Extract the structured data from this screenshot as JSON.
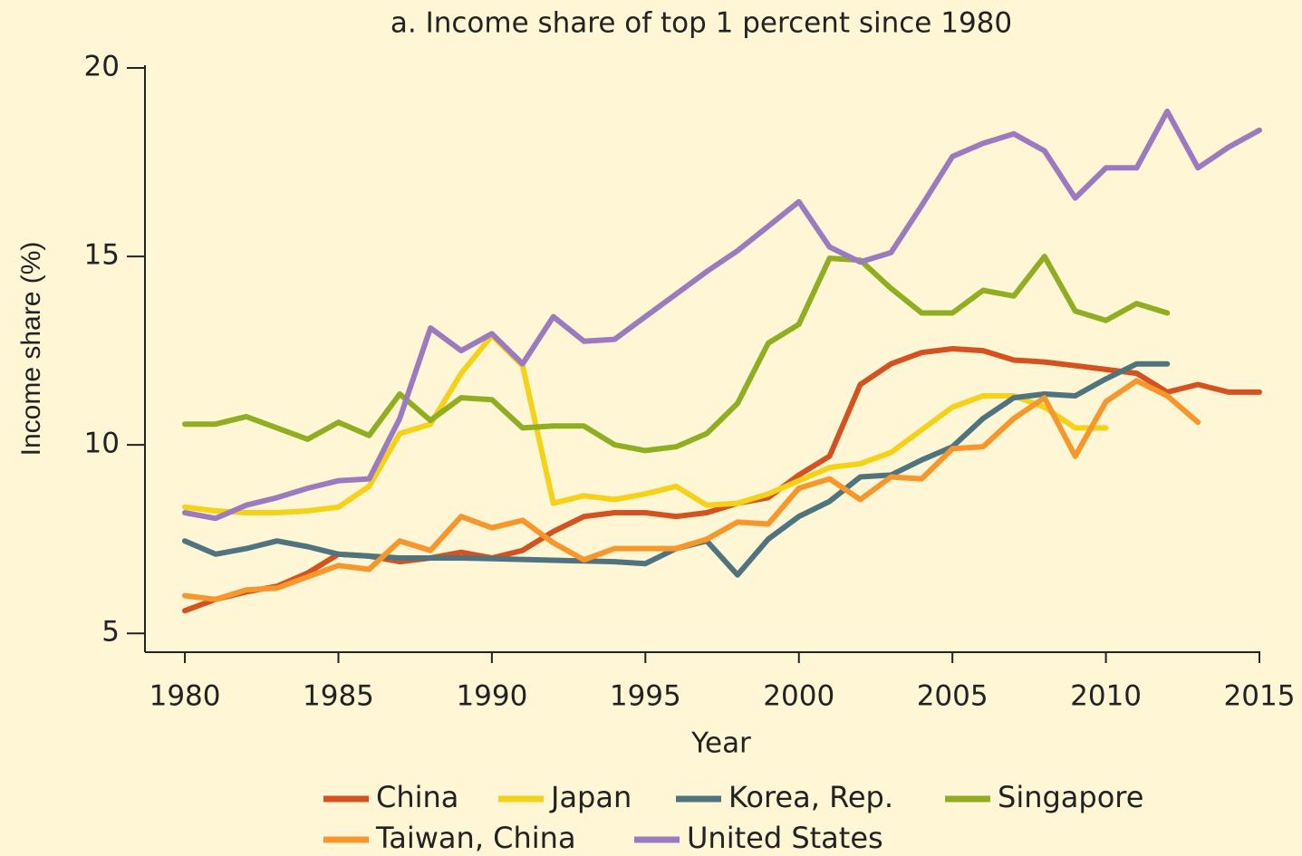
{
  "chart_data": {
    "type": "line",
    "title": "a. Income share of top 1 percent since 1980",
    "xlabel": "Year",
    "ylabel": "Income share (%)",
    "x": [
      1980,
      1981,
      1982,
      1983,
      1984,
      1985,
      1986,
      1987,
      1988,
      1989,
      1990,
      1991,
      1992,
      1993,
      1994,
      1995,
      1996,
      1997,
      1998,
      1999,
      2000,
      2001,
      2002,
      2003,
      2004,
      2005,
      2006,
      2007,
      2008,
      2009,
      2010,
      2011,
      2012,
      2013,
      2014,
      2015
    ],
    "xlim": [
      1978.7,
      2015
    ],
    "xticks": [
      1980,
      1985,
      1990,
      1995,
      2000,
      2005,
      2010,
      2015
    ],
    "ylim": [
      4.5,
      20
    ],
    "yticks": [
      5,
      10,
      15,
      20
    ],
    "series": [
      {
        "name": "China",
        "color": "#d4521f",
        "values": [
          5.6,
          5.9,
          6.1,
          6.25,
          6.6,
          7.1,
          7.05,
          6.9,
          7.0,
          7.15,
          7.0,
          7.2,
          7.7,
          8.1,
          8.2,
          8.2,
          8.1,
          8.2,
          8.45,
          8.6,
          9.2,
          9.7,
          11.6,
          12.15,
          12.45,
          12.55,
          12.5,
          12.25,
          12.2,
          12.1,
          12.0,
          11.9,
          11.4,
          11.6,
          11.4,
          11.4
        ]
      },
      {
        "name": "Japan",
        "color": "#f5d117",
        "values": [
          8.35,
          8.25,
          8.2,
          8.2,
          8.25,
          8.35,
          8.9,
          10.3,
          10.55,
          11.9,
          12.9,
          12.1,
          8.45,
          8.65,
          8.55,
          8.7,
          8.9,
          8.4,
          8.45,
          8.7,
          9.05,
          9.4,
          9.5,
          9.8,
          10.4,
          11.0,
          11.3,
          11.3,
          11.0,
          10.45,
          10.45,
          null,
          null,
          null,
          null,
          null
        ]
      },
      {
        "name": "Korea, Rep.",
        "color": "#4f7480",
        "values": [
          7.45,
          7.1,
          7.25,
          7.45,
          7.3,
          7.1,
          7.05,
          7.0,
          7.0,
          7.0,
          6.98,
          6.96,
          6.94,
          6.92,
          6.9,
          6.85,
          7.25,
          7.45,
          6.55,
          7.5,
          8.1,
          8.5,
          9.15,
          9.2,
          9.6,
          9.95,
          10.7,
          11.25,
          11.35,
          11.3,
          11.75,
          12.15,
          12.15,
          null,
          null,
          null
        ]
      },
      {
        "name": "Singapore",
        "color": "#8fae21",
        "values": [
          10.55,
          10.55,
          10.75,
          10.45,
          10.15,
          10.6,
          10.25,
          11.35,
          10.65,
          11.25,
          11.2,
          10.45,
          10.5,
          10.5,
          10.0,
          9.85,
          9.95,
          10.3,
          11.1,
          12.7,
          13.2,
          14.95,
          14.9,
          14.15,
          13.5,
          13.5,
          14.1,
          13.95,
          15.0,
          13.55,
          13.3,
          13.75,
          13.5,
          null,
          null,
          null
        ]
      },
      {
        "name": "Taiwan, China",
        "color": "#f6962b",
        "values": [
          6.0,
          5.9,
          6.15,
          6.2,
          6.5,
          6.8,
          6.7,
          7.45,
          7.2,
          8.1,
          7.8,
          8.0,
          7.4,
          6.95,
          7.25,
          7.25,
          7.25,
          7.5,
          7.95,
          7.9,
          8.85,
          9.1,
          8.55,
          9.15,
          9.1,
          9.9,
          9.95,
          10.7,
          11.25,
          9.7,
          11.15,
          11.7,
          11.3,
          10.6,
          null,
          null
        ]
      },
      {
        "name": "United States",
        "color": "#9b7ac0",
        "values": [
          8.2,
          8.05,
          8.4,
          8.6,
          8.85,
          9.05,
          9.1,
          10.7,
          13.1,
          12.5,
          12.95,
          12.15,
          13.4,
          12.75,
          12.8,
          13.4,
          14.0,
          14.6,
          15.15,
          15.8,
          16.45,
          15.25,
          14.85,
          15.1,
          16.35,
          17.65,
          18.0,
          18.25,
          17.8,
          16.55,
          17.35,
          17.35,
          18.85,
          17.35,
          17.9,
          18.35
        ]
      }
    ]
  }
}
